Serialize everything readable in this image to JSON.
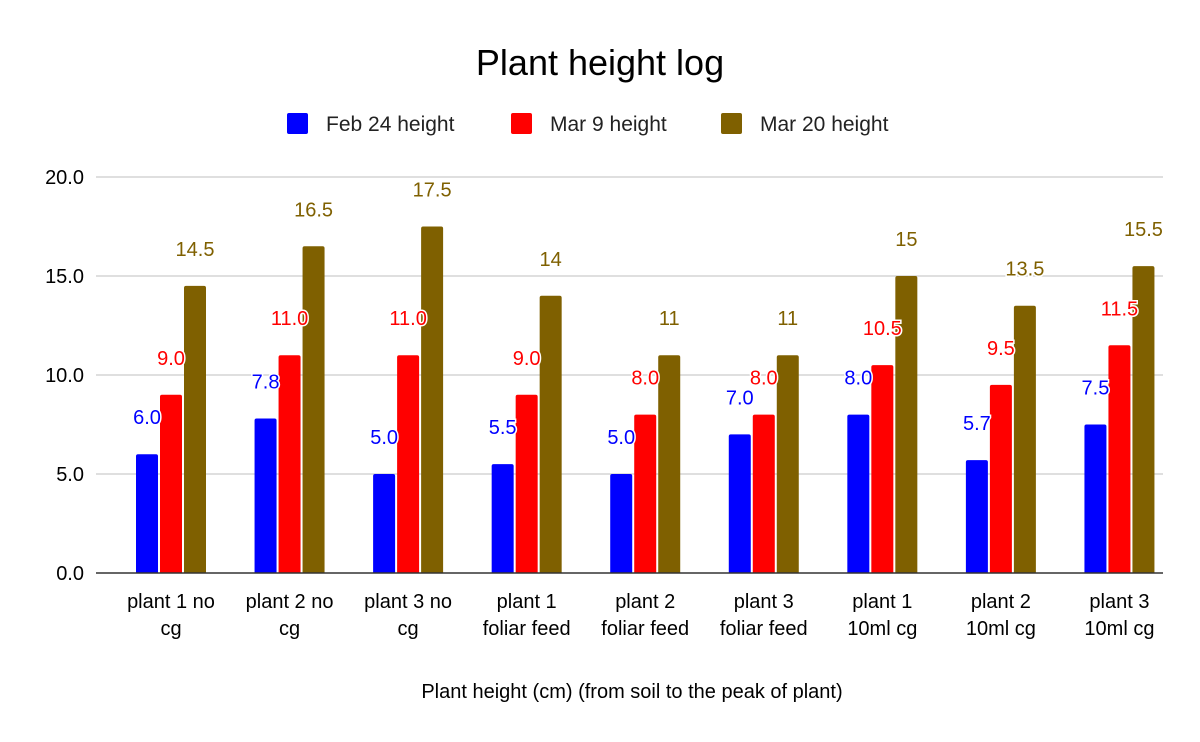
{
  "chart_data": {
    "type": "bar",
    "title": "Plant height log",
    "xlabel": "Plant height (cm) (from soil to the peak of plant)",
    "ylabel": "",
    "ylim": [
      0,
      20
    ],
    "yticks": [
      0,
      5,
      10,
      15,
      20
    ],
    "ytick_labels": [
      "0.0",
      "5.0",
      "10.0",
      "15.0",
      "20.0"
    ],
    "grid": true,
    "legend_position": "top-center",
    "categories": [
      [
        "plant 1 no",
        "cg"
      ],
      [
        "plant 2 no",
        "cg"
      ],
      [
        "plant 3 no",
        "cg"
      ],
      [
        "plant 1",
        "foliar feed"
      ],
      [
        "plant 2",
        "foliar feed"
      ],
      [
        "plant 3",
        "foliar feed"
      ],
      [
        "plant 1",
        "10ml cg"
      ],
      [
        "plant 2",
        "10ml cg"
      ],
      [
        "plant 3",
        "10ml cg"
      ]
    ],
    "series": [
      {
        "name": "Feb 24 height",
        "color": "#0000ff",
        "values": [
          6.0,
          7.8,
          5.0,
          5.5,
          5.0,
          7.0,
          8.0,
          5.7,
          7.5
        ],
        "labels": [
          "6.0",
          "7.8",
          "5.0",
          "5.5",
          "5.0",
          "7.0",
          "8.0",
          "5.7",
          "7.5"
        ]
      },
      {
        "name": "Mar 9 height",
        "color": "#ff0000",
        "values": [
          9.0,
          11.0,
          11.0,
          9.0,
          8.0,
          8.0,
          10.5,
          9.5,
          11.5
        ],
        "labels": [
          "9.0",
          "11.0",
          "11.0",
          "9.0",
          "8.0",
          "8.0",
          "10.5",
          "9.5",
          "11.5"
        ]
      },
      {
        "name": "Mar 20 height",
        "color": "#7f6000",
        "values": [
          14.5,
          16.5,
          17.5,
          14,
          11,
          11,
          15,
          13.5,
          15.5
        ],
        "labels": [
          "14.5",
          "16.5",
          "17.5",
          "14",
          "11",
          "11",
          "15",
          "13.5",
          "15.5"
        ]
      }
    ]
  }
}
